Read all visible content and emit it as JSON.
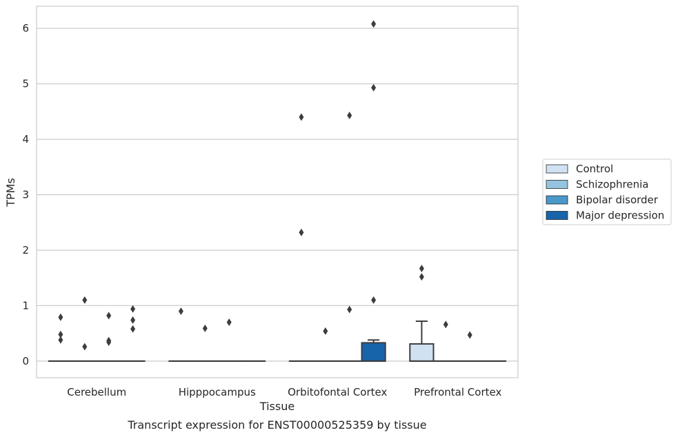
{
  "chart_data": {
    "type": "box",
    "title": "Transcript expression for ENST00000525359 by tissue",
    "xlabel": "Tissue",
    "ylabel": "TPMs",
    "ylim": [
      -0.3,
      6.4
    ],
    "yticks": [
      0,
      1,
      2,
      3,
      4,
      5,
      6
    ],
    "grid": "horizontal",
    "legend_position": "right",
    "categories": [
      "Cerebellum",
      "Hipppocampus",
      "Orbitofontal Cortex",
      "Prefrontal Cortex"
    ],
    "series": [
      {
        "name": "Control",
        "color": "#d0e1f2",
        "boxes": [
          {
            "q1": 0,
            "median": 0,
            "q3": 0,
            "whislo": 0,
            "whishi": 0,
            "fliers": [
              0.79,
              0.48,
              0.38
            ]
          },
          {
            "q1": 0,
            "median": 0,
            "q3": 0,
            "whislo": 0,
            "whishi": 0,
            "fliers": [
              0.9
            ]
          },
          {
            "q1": 0,
            "median": 0,
            "q3": 0,
            "whislo": 0,
            "whishi": 0,
            "fliers": [
              4.4,
              2.32
            ]
          },
          {
            "q1": 0,
            "median": 0,
            "q3": 0.31,
            "whislo": 0,
            "whishi": 0.72,
            "fliers": [
              1.67,
              1.52
            ]
          }
        ]
      },
      {
        "name": "Schizophrenia",
        "color": "#94c4df",
        "boxes": [
          {
            "q1": 0,
            "median": 0,
            "q3": 0,
            "whislo": 0,
            "whishi": 0,
            "fliers": [
              1.1,
              0.26
            ]
          },
          {
            "q1": 0,
            "median": 0,
            "q3": 0,
            "whislo": 0,
            "whishi": 0,
            "fliers": [
              0.59
            ]
          },
          {
            "q1": 0,
            "median": 0,
            "q3": 0,
            "whislo": 0,
            "whishi": 0,
            "fliers": [
              0.54
            ]
          },
          {
            "q1": 0,
            "median": 0,
            "q3": 0,
            "whislo": 0,
            "whishi": 0,
            "fliers": [
              0.66
            ]
          }
        ]
      },
      {
        "name": "Bipolar disorder",
        "color": "#4a98c9",
        "boxes": [
          {
            "q1": 0,
            "median": 0,
            "q3": 0,
            "whislo": 0,
            "whishi": 0,
            "fliers": [
              0.82,
              0.37,
              0.34
            ]
          },
          {
            "q1": 0,
            "median": 0,
            "q3": 0,
            "whislo": 0,
            "whishi": 0,
            "fliers": [
              0.7
            ]
          },
          {
            "q1": 0,
            "median": 0,
            "q3": 0,
            "whislo": 0,
            "whishi": 0,
            "fliers": [
              4.43,
              0.93
            ]
          },
          {
            "q1": 0,
            "median": 0,
            "q3": 0,
            "whislo": 0,
            "whishi": 0,
            "fliers": [
              0.47
            ]
          }
        ]
      },
      {
        "name": "Major depression",
        "color": "#1764ab",
        "boxes": [
          {
            "q1": 0,
            "median": 0,
            "q3": 0,
            "whislo": 0,
            "whishi": 0,
            "fliers": [
              0.94,
              0.74,
              0.58
            ]
          },
          {
            "q1": 0,
            "median": 0,
            "q3": 0,
            "whislo": 0,
            "whishi": 0,
            "fliers": []
          },
          {
            "q1": 0,
            "median": 0,
            "q3": 0.33,
            "whislo": 0,
            "whishi": 0.38,
            "fliers": [
              6.08,
              4.93,
              1.1
            ]
          },
          {
            "q1": 0,
            "median": 0,
            "q3": 0,
            "whislo": 0,
            "whishi": 0,
            "fliers": []
          }
        ]
      }
    ]
  }
}
